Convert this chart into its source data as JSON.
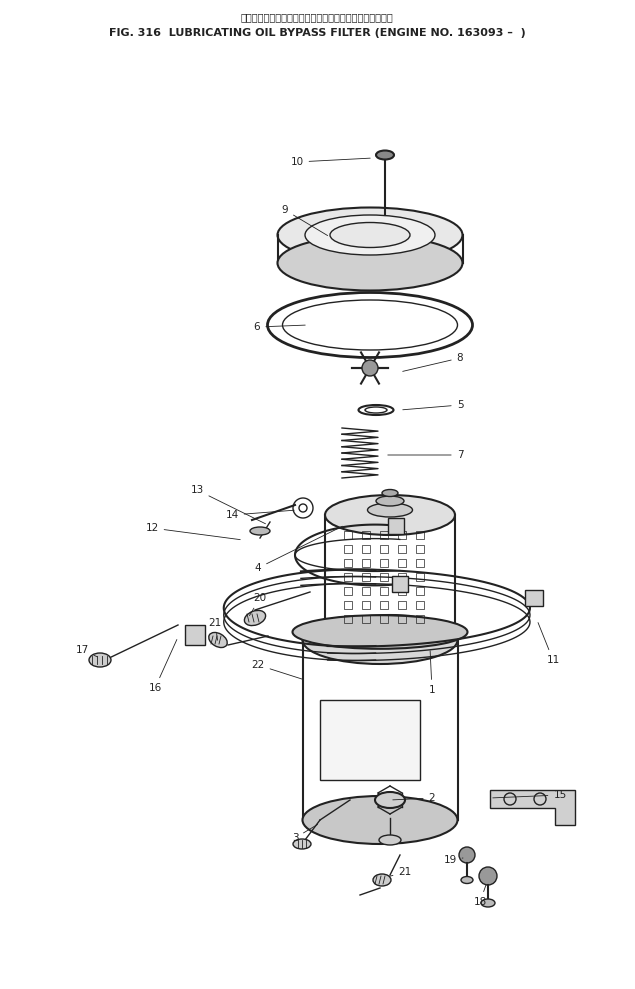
{
  "title_japanese": "ルーブリケーティングオイルバイパスフィルタ　適用号機",
  "title_english": "FIG. 316  LUBRICATING OIL BYPASS FILTER (ENGINE NO. 163093 –  )",
  "bg_color": "#ffffff",
  "line_color": "#222222",
  "fig_width": 6.35,
  "fig_height": 9.89,
  "dpi": 100
}
